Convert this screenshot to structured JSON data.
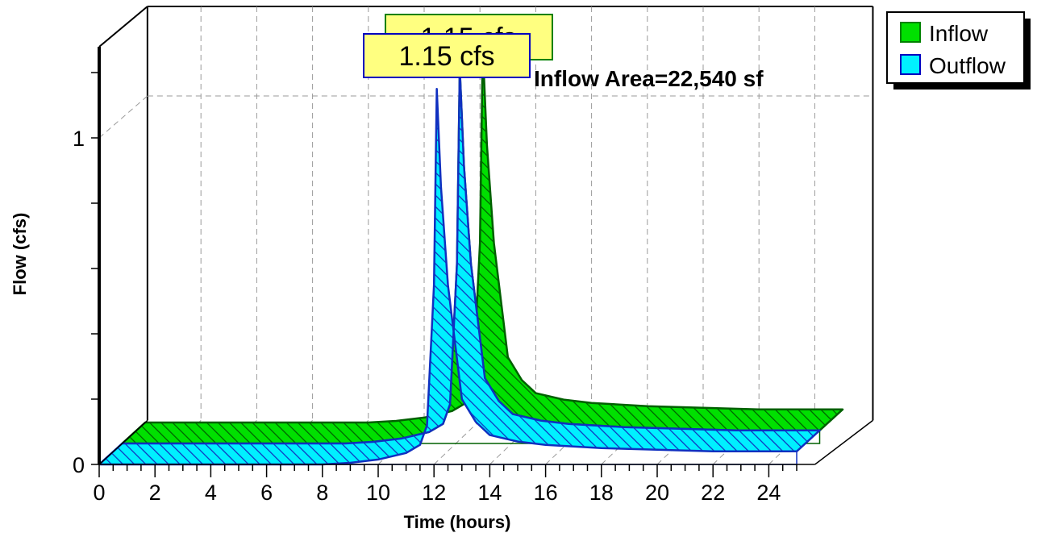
{
  "chart_data": {
    "type": "area",
    "xlabel": "Time  (hours)",
    "ylabel": "Flow  (cfs)",
    "xlim": [
      0,
      26
    ],
    "ylim": [
      0,
      1.25
    ],
    "x_ticks": [
      0,
      2,
      4,
      6,
      8,
      10,
      12,
      14,
      16,
      18,
      20,
      22,
      24
    ],
    "y_ticks": [
      0,
      1
    ],
    "grid": true,
    "view": "3d-depth",
    "legend_position": "top-right",
    "annotation": "Inflow Area=22,540 sf",
    "series": [
      {
        "name": "Inflow",
        "color": "#00e000",
        "peak_label": "1.15 cfs",
        "x": [
          0,
          2,
          4,
          6,
          8,
          9,
          10,
          11,
          11.5,
          11.75,
          12,
          12.1,
          12.25,
          12.5,
          13,
          13.5,
          14,
          15,
          16,
          17,
          18,
          20,
          22,
          24,
          25
        ],
        "y": [
          0.0,
          0.0,
          0.0,
          0.0,
          0.0,
          0.005,
          0.015,
          0.035,
          0.06,
          0.12,
          0.55,
          1.15,
          0.85,
          0.55,
          0.2,
          0.13,
          0.09,
          0.07,
          0.06,
          0.055,
          0.05,
          0.045,
          0.04,
          0.04,
          0.04
        ]
      },
      {
        "name": "Outflow",
        "color": "#00f0ff",
        "peak_label": "1.15 cfs",
        "x": [
          0,
          2,
          4,
          6,
          8,
          9,
          10,
          11,
          11.5,
          11.75,
          12,
          12.1,
          12.25,
          12.5,
          13,
          13.5,
          14,
          15,
          16,
          17,
          18,
          20,
          22,
          24,
          25
        ],
        "y": [
          0.0,
          0.0,
          0.0,
          0.0,
          0.0,
          0.005,
          0.015,
          0.035,
          0.06,
          0.12,
          0.55,
          1.15,
          0.85,
          0.55,
          0.2,
          0.13,
          0.09,
          0.07,
          0.06,
          0.055,
          0.05,
          0.045,
          0.04,
          0.04,
          0.04
        ]
      }
    ]
  }
}
